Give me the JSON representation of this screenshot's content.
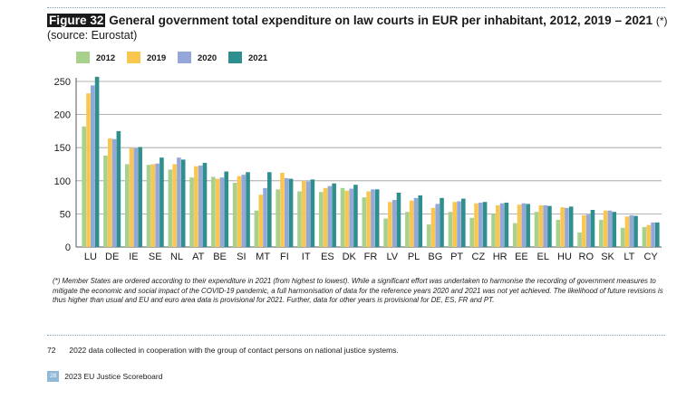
{
  "header": {
    "figure_label": "Figure 32",
    "title": "General government total expenditure on law courts in EUR per inhabitant, 2012, 2019 – 2021",
    "title_note": "(*)",
    "source": "(source: Eurostat)"
  },
  "chart_data": {
    "type": "bar",
    "title": "General government total expenditure on law courts in EUR per inhabitant, 2012, 2019 – 2021",
    "xlabel": "",
    "ylabel": "",
    "ylim": [
      0,
      250
    ],
    "yticks": [
      0,
      50,
      100,
      150,
      200,
      250
    ],
    "grid": true,
    "legend_position": "top",
    "categories": [
      "LU",
      "DE",
      "IE",
      "SE",
      "NL",
      "AT",
      "BE",
      "SI",
      "MT",
      "FI",
      "IT",
      "ES",
      "DK",
      "FR",
      "LV",
      "PL",
      "BG",
      "PT",
      "CZ",
      "HR",
      "EE",
      "EL",
      "HU",
      "RO",
      "SK",
      "LT",
      "CY"
    ],
    "series": [
      {
        "name": "2012",
        "color": "#a9d18e",
        "values": [
          182,
          138,
          125,
          124,
          117,
          105,
          106,
          97,
          55,
          87,
          84,
          83,
          89,
          75,
          43,
          53,
          34,
          53,
          44,
          50,
          36,
          53,
          41,
          22,
          41,
          29,
          30
        ]
      },
      {
        "name": "2019",
        "color": "#f9c74f",
        "values": [
          232,
          164,
          149,
          125,
          125,
          122,
          103,
          107,
          79,
          112,
          100,
          89,
          85,
          84,
          68,
          70,
          59,
          68,
          66,
          63,
          64,
          63,
          60,
          48,
          55,
          46,
          33
        ]
      },
      {
        "name": "2020",
        "color": "#93a8d8",
        "values": [
          244,
          163,
          149,
          126,
          135,
          123,
          105,
          109,
          89,
          104,
          99,
          92,
          88,
          87,
          71,
          74,
          65,
          69,
          67,
          66,
          66,
          63,
          59,
          49,
          55,
          48,
          37
        ]
      },
      {
        "name": "2021",
        "color": "#2f8f8f",
        "values": [
          257,
          175,
          151,
          135,
          132,
          127,
          114,
          113,
          113,
          103,
          102,
          96,
          94,
          87,
          82,
          78,
          74,
          73,
          68,
          67,
          65,
          62,
          61,
          56,
          53,
          47,
          37
        ]
      }
    ]
  },
  "footnote": "(*) Member States are ordered according to their expenditure in 2021 (from highest to lowest). While a significant effort was undertaken to harmonise the recording of government measures to mitigate the economic and social impact of the COVID-19 pandemic, a full harmonisation of data for the reference years 2020 and 2021 was not yet achieved. The likelihood of future revisions is thus higher than usual and EU and euro area data is provisional for 2021.  Further, data for other years is provisional for DE, ES, FR and PT.",
  "footer_note": {
    "number": "72",
    "text": "2022 data collected in cooperation with the group of contact persons on national justice systems."
  },
  "footer": {
    "page_number": "28",
    "publication": "2023 EU Justice Scoreboard"
  }
}
